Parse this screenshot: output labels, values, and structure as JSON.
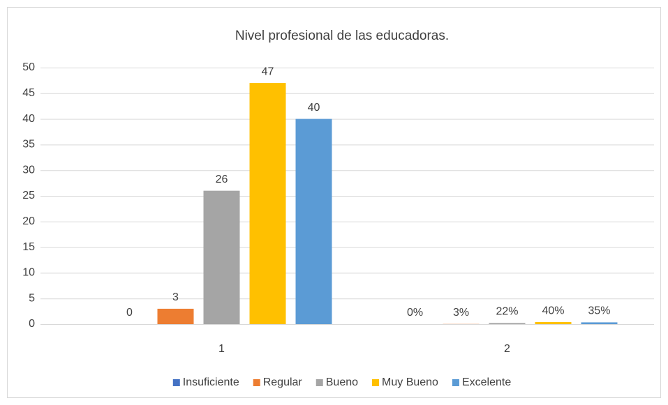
{
  "chart_data": {
    "type": "bar",
    "title": "Nivel profesional de las educadoras.",
    "categories": [
      "1",
      "2"
    ],
    "series": [
      {
        "name": "Insuficiente",
        "color": "#4472c4",
        "values": [
          0,
          0
        ],
        "value_labels": [
          "0",
          "0%"
        ]
      },
      {
        "name": "Regular",
        "color": "#ed7d31",
        "values": [
          3,
          0.03
        ],
        "value_labels": [
          "3",
          "3%"
        ]
      },
      {
        "name": "Bueno",
        "color": "#a5a5a5",
        "values": [
          26,
          0.22
        ],
        "value_labels": [
          "26",
          "22%"
        ]
      },
      {
        "name": "Muy Bueno",
        "color": "#ffc000",
        "values": [
          47,
          0.4
        ],
        "value_labels": [
          "47",
          "40%"
        ]
      },
      {
        "name": "Excelente",
        "color": "#5b9bd5",
        "values": [
          40,
          0.35
        ],
        "value_labels": [
          "40",
          "35%"
        ]
      }
    ],
    "ylim": [
      0,
      50
    ],
    "yticks": [
      0,
      5,
      10,
      15,
      20,
      25,
      30,
      35,
      40,
      45,
      50
    ],
    "grid": true,
    "legend": "bottom"
  }
}
